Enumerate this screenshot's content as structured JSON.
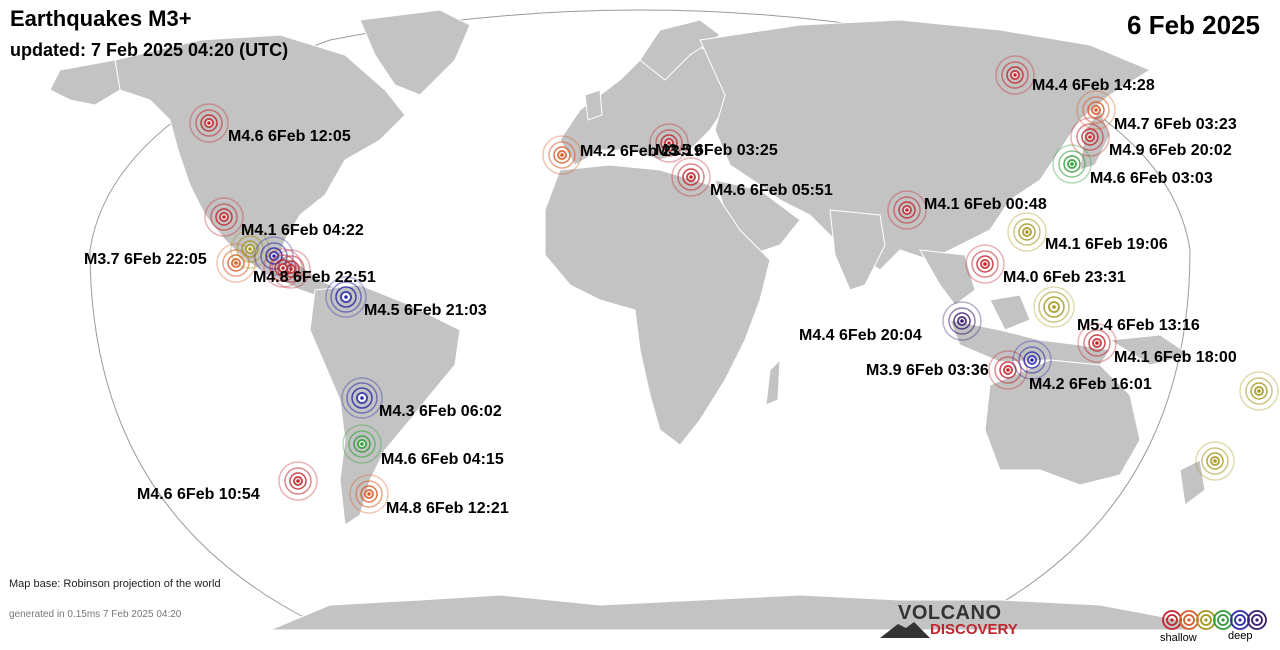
{
  "header": {
    "title": "Earthquakes M3+",
    "updated": "updated:  7 Feb 2025 04:20 (UTC)",
    "date": "6 Feb 2025"
  },
  "footer": {
    "map_base": "Map base: Robinson projection of the world",
    "generated": "generated in 0.15ms  7 Feb 2025 04:20"
  },
  "logo": {
    "line1": "VOLCANO",
    "line2": "DISCOVERY"
  },
  "depth_legend": {
    "shallow": "shallow",
    "deep": "deep"
  },
  "colors": {
    "land": "#c3c3c3",
    "ocean": "#ffffff",
    "outline": "#999999",
    "depth_scale": [
      "#c0262d",
      "#d85d2a",
      "#a4961e",
      "#2e9b36",
      "#2a2aa6",
      "#3a1c70"
    ]
  },
  "quakes": [
    {
      "label": "M4.6  6Feb 12:05",
      "color": "#c0262d"
    },
    {
      "label": "M4.1  6Feb 04:22",
      "color": "#c0262d"
    },
    {
      "label": "M3.7  6Feb 22:05",
      "color": "#d85d2a"
    },
    {
      "label": "M4.8  6Feb 22:51",
      "color": "#c0262d"
    },
    {
      "label": "M4.5  6Feb 21:03",
      "color": "#2a2aa6"
    },
    {
      "label": "M4.3  6Feb 06:02",
      "color": "#2a2aa6"
    },
    {
      "label": "M4.6  6Feb 04:15",
      "color": "#2e9b36"
    },
    {
      "label": "M4.6  6Feb 10:54",
      "color": "#c0262d"
    },
    {
      "label": "M4.8  6Feb 12:21",
      "color": "#d85d2a"
    },
    {
      "label": "M4.2  6Feb 23:19",
      "color": "#d85d2a"
    },
    {
      "label": "M3.5  6Feb 03:25",
      "color": "#c0262d"
    },
    {
      "label": "M4.6  6Feb 05:51",
      "color": "#c0262d"
    },
    {
      "label": "M4.4  6Feb 14:28",
      "color": "#c0262d"
    },
    {
      "label": "M4.7  6Feb 03:23",
      "color": "#d85d2a"
    },
    {
      "label": "M4.9  6Feb 20:02",
      "color": "#c0262d"
    },
    {
      "label": "M4.6  6Feb 03:03",
      "color": "#2e9b36"
    },
    {
      "label": "M4.1  6Feb 00:48",
      "color": "#c0262d"
    },
    {
      "label": "M4.1  6Feb 19:06",
      "color": "#a4961e"
    },
    {
      "label": "M4.0  6Feb 23:31",
      "color": "#c0262d"
    },
    {
      "label": "M5.4  6Feb 13:16",
      "color": "#a4961e"
    },
    {
      "label": "M4.4  6Feb 20:04",
      "color": "#3a1c70"
    },
    {
      "label": "M4.1  6Feb 18:00",
      "color": "#c0262d"
    },
    {
      "label": "M3.9  6Feb 03:36",
      "color": "#c0262d"
    },
    {
      "label": "M4.2  6Feb 16:01",
      "color": "#2a2aa6"
    },
    {
      "label": "",
      "color": "#a4961e"
    },
    {
      "label": "",
      "color": "#a4961e"
    },
    {
      "label": "",
      "color": "#a4961e"
    },
    {
      "label": "",
      "color": "#2a2aa6"
    },
    {
      "label": "",
      "color": "#c0262d"
    }
  ]
}
